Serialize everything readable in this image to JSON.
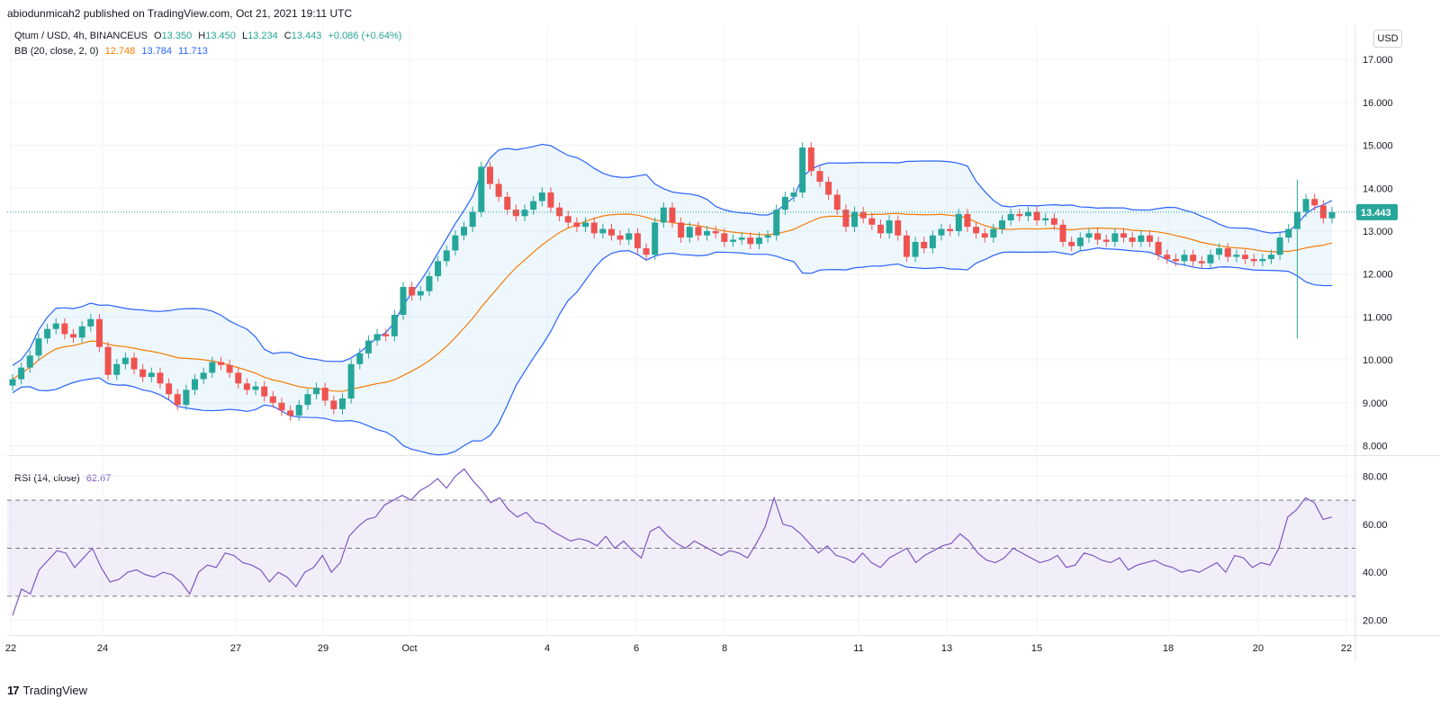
{
  "header": {
    "published": "abiodunmicah2 published on TradingView.com, Oct 21, 2021 19:11 UTC"
  },
  "legend": {
    "symbol": "Qtum / USD, 4h, BINANCEUS",
    "o_label": "O",
    "o": "13.350",
    "h_label": "H",
    "h": "13.450",
    "l_label": "L",
    "l": "13.234",
    "c_label": "C",
    "c": "13.443",
    "change": "+0.086 (+0.64%)",
    "bb_label": "BB (20, close, 2, 0)",
    "bb_basis": "12.748",
    "bb_upper": "13.784",
    "bb_lower": "11.713",
    "rsi_label": "RSI (14, close)",
    "rsi_value": "62.67"
  },
  "currency_button": "USD",
  "brand": {
    "logo": "17",
    "name": "TradingView"
  },
  "colors": {
    "up": "#26a69a",
    "down": "#ef5350",
    "bb_band": "#2962ff",
    "bb_basis": "#f57c00",
    "rsi": "#7e57c2"
  },
  "chart_data": [
    {
      "type": "candlestick",
      "symbol": "Qtum / USD",
      "timeframe": "4h",
      "ylim": [
        7.8,
        17.8
      ],
      "y_ticks": [
        "17.000",
        "16.000",
        "15.000",
        "14.000",
        "13.000",
        "12.000",
        "11.000",
        "10.000",
        "9.000",
        "8.000"
      ],
      "x_ticks": [
        "22",
        "24",
        "27",
        "29",
        "Oct",
        "4",
        "6",
        "8",
        "11",
        "13",
        "15",
        "18",
        "20",
        "22"
      ],
      "last_price": "13.443",
      "overlays": [
        "BB (20, close, 2, 0)"
      ],
      "closes": [
        9.55,
        9.82,
        10.1,
        10.5,
        10.72,
        10.85,
        10.6,
        10.52,
        10.78,
        10.95,
        10.3,
        9.65,
        9.9,
        10.05,
        9.78,
        9.6,
        9.7,
        9.45,
        9.2,
        8.95,
        9.3,
        9.55,
        9.7,
        9.95,
        9.88,
        9.7,
        9.45,
        9.3,
        9.38,
        9.15,
        9.0,
        8.82,
        8.7,
        8.95,
        9.2,
        9.35,
        9.05,
        8.85,
        9.1,
        9.9,
        10.15,
        10.45,
        10.6,
        10.55,
        11.05,
        11.7,
        11.5,
        11.6,
        11.95,
        12.3,
        12.55,
        12.9,
        13.1,
        13.45,
        14.5,
        14.1,
        13.8,
        13.5,
        13.35,
        13.5,
        13.7,
        13.9,
        13.55,
        13.35,
        13.2,
        13.1,
        13.2,
        12.95,
        13.05,
        12.9,
        12.8,
        12.95,
        12.6,
        12.45,
        13.2,
        13.55,
        13.2,
        12.85,
        13.1,
        12.9,
        13.0,
        12.95,
        12.75,
        12.8,
        12.85,
        12.7,
        12.85,
        12.9,
        13.5,
        13.8,
        13.9,
        14.95,
        14.4,
        14.15,
        13.85,
        13.5,
        13.1,
        13.45,
        13.3,
        13.15,
        12.95,
        13.25,
        12.9,
        12.4,
        12.75,
        12.6,
        12.9,
        13.05,
        13.0,
        13.4,
        13.1,
        12.95,
        12.85,
        13.05,
        13.25,
        13.4,
        13.35,
        13.45,
        13.25,
        13.3,
        13.15,
        12.75,
        12.65,
        12.85,
        12.95,
        12.8,
        12.75,
        12.95,
        12.85,
        12.75,
        12.9,
        12.75,
        12.45,
        12.35,
        12.3,
        12.45,
        12.3,
        12.25,
        12.45,
        12.6,
        12.4,
        12.45,
        12.35,
        12.3,
        12.35,
        12.45,
        12.85,
        13.05,
        13.45,
        13.75,
        13.6,
        13.3,
        13.443
      ]
    },
    {
      "type": "line",
      "name": "RSI (14, close)",
      "ylim": [
        15,
        88
      ],
      "y_ticks": [
        "80.00",
        "60.00",
        "40.00",
        "20.00"
      ],
      "levels": [
        70,
        50,
        30
      ],
      "values": [
        22,
        33,
        31,
        41,
        45,
        49,
        48,
        42,
        46,
        50,
        42,
        36,
        37,
        40,
        41,
        39,
        38,
        40,
        39,
        36,
        31,
        40,
        43,
        42,
        48,
        47,
        44,
        43,
        41,
        36,
        40,
        38,
        34,
        40,
        42,
        47,
        40,
        44,
        55,
        59,
        62,
        63,
        68,
        70,
        72,
        70,
        74,
        76,
        79,
        75,
        80,
        83,
        78,
        74,
        69,
        71,
        66,
        63,
        65,
        61,
        60,
        57,
        55,
        53,
        54,
        53,
        51,
        55,
        50,
        53,
        49,
        46,
        57,
        59,
        55,
        52,
        50,
        53,
        51,
        49,
        47,
        49,
        48,
        46,
        52,
        59,
        71,
        60,
        59,
        56,
        52,
        48,
        51,
        47,
        46,
        44,
        48,
        44,
        42,
        46,
        48,
        50,
        44,
        47,
        49,
        51,
        52,
        56,
        53,
        48,
        45,
        44,
        46,
        50,
        48,
        46,
        44,
        45,
        47,
        42,
        43,
        48,
        47,
        45,
        44,
        46,
        41,
        43,
        44,
        45,
        43,
        42,
        40,
        41,
        40,
        42,
        44,
        40,
        47,
        46,
        42,
        44,
        43,
        50,
        63,
        66,
        71,
        69,
        62,
        63
      ]
    }
  ]
}
